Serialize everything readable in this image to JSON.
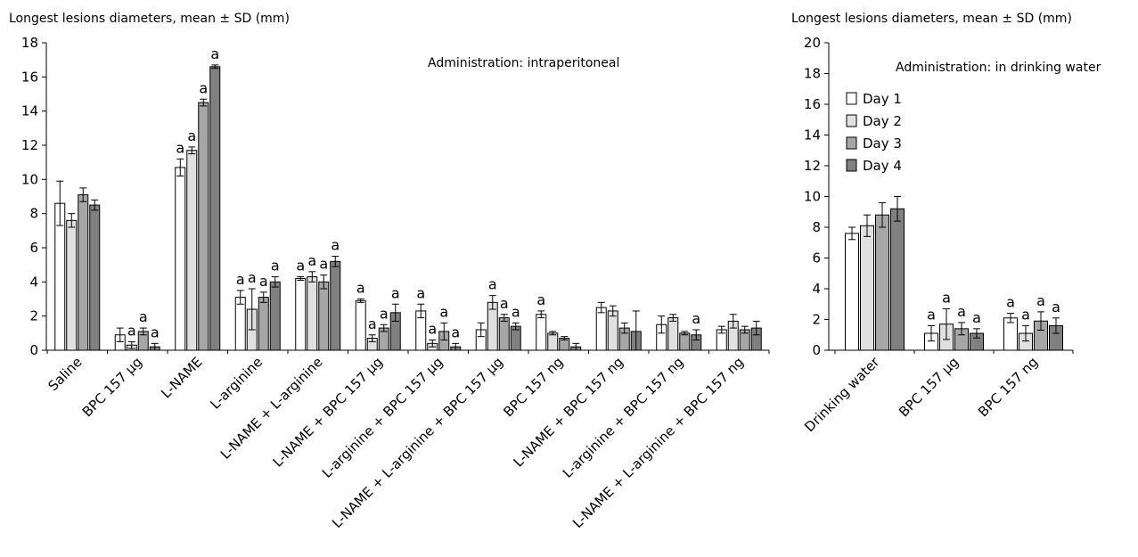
{
  "chart_data": [
    {
      "type": "bar",
      "title": "Longest lesions diameters, mean ± SD (mm)",
      "annotation": "Administration: intraperitoneal",
      "ylim": [
        0,
        18
      ],
      "yticks": [
        0,
        2,
        4,
        6,
        8,
        10,
        12,
        14,
        16,
        18
      ],
      "grid": false,
      "categories": [
        "Saline",
        "BPC 157 µg",
        "L-NAME",
        "L-arginine",
        "L-NAME + L-arginine",
        "L-NAME + BPC 157 µg",
        "L-arginine + BPC 157 µg",
        "L-NAME + L-arginine + BPC 157 µg",
        "BPC 157 ng",
        "L-NAME + BPC 157 ng",
        "L-arginine + BPC 157 ng",
        "L-NAME + L-arginine + BPC 157 ng"
      ],
      "series": [
        {
          "name": "Day 1",
          "color": "#ffffff",
          "values": [
            8.6,
            0.9,
            10.7,
            3.1,
            4.2,
            2.9,
            2.3,
            1.2,
            2.1,
            2.5,
            1.5,
            1.2
          ],
          "errors": [
            1.3,
            0.4,
            0.5,
            0.4,
            0.1,
            0.1,
            0.4,
            0.4,
            0.2,
            0.3,
            0.5,
            0.2
          ],
          "marks": [
            "",
            "",
            "a",
            "a",
            "a",
            "a",
            "a",
            "",
            "a",
            "",
            "",
            ""
          ]
        },
        {
          "name": "Day 2",
          "color": "#e0e0e0",
          "values": [
            7.6,
            0.3,
            11.7,
            2.4,
            4.3,
            0.7,
            0.4,
            2.8,
            1.0,
            2.3,
            1.9,
            1.7
          ],
          "errors": [
            0.4,
            0.2,
            0.2,
            1.2,
            0.3,
            0.2,
            0.2,
            0.4,
            0.1,
            0.3,
            0.2,
            0.4
          ],
          "marks": [
            "",
            "a",
            "a",
            "a",
            "a",
            "a",
            "a",
            "a",
            "",
            "",
            "",
            ""
          ]
        },
        {
          "name": "Day 3",
          "color": "#a6a6a6",
          "values": [
            9.1,
            1.1,
            14.5,
            3.1,
            4.0,
            1.3,
            1.1,
            1.9,
            0.7,
            1.3,
            1.0,
            1.2
          ],
          "errors": [
            0.4,
            0.2,
            0.2,
            0.3,
            0.4,
            0.2,
            0.5,
            0.2,
            0.1,
            0.3,
            0.1,
            0.2
          ],
          "marks": [
            "",
            "a",
            "a",
            "a",
            "a",
            "a",
            "a",
            "a",
            "",
            "",
            "",
            ""
          ]
        },
        {
          "name": "Day 4",
          "color": "#808080",
          "values": [
            8.5,
            0.2,
            16.6,
            4.0,
            5.2,
            2.2,
            0.2,
            1.4,
            0.2,
            1.1,
            0.9,
            1.3
          ],
          "errors": [
            0.3,
            0.2,
            0.1,
            0.3,
            0.3,
            0.5,
            0.2,
            0.2,
            0.2,
            1.2,
            0.3,
            0.4
          ],
          "marks": [
            "",
            "a",
            "a",
            "a",
            "a",
            "a",
            "a",
            "a",
            "",
            "",
            "a",
            ""
          ]
        }
      ]
    },
    {
      "type": "bar",
      "title": "Longest lesions diameters, mean ± SD (mm)",
      "annotation": "Administration: in drinking water",
      "ylim": [
        0,
        20
      ],
      "yticks": [
        0,
        2,
        4,
        6,
        8,
        10,
        12,
        14,
        16,
        18,
        20
      ],
      "grid": false,
      "legend": {
        "position": "top-left",
        "entries": [
          "Day 1",
          "Day 2",
          "Day 3",
          "Day 4"
        ]
      },
      "categories": [
        "Drinking water",
        "BPC 157 µg",
        "BPC 157 ng"
      ],
      "series": [
        {
          "name": "Day 1",
          "color": "#ffffff",
          "values": [
            7.6,
            1.1,
            2.1
          ],
          "errors": [
            0.4,
            0.5,
            0.3
          ],
          "marks": [
            "",
            "a",
            "a"
          ]
        },
        {
          "name": "Day 2",
          "color": "#e0e0e0",
          "values": [
            8.1,
            1.7,
            1.1
          ],
          "errors": [
            0.7,
            1.0,
            0.5
          ],
          "marks": [
            "",
            "a",
            "a"
          ]
        },
        {
          "name": "Day 3",
          "color": "#a6a6a6",
          "values": [
            8.8,
            1.4,
            1.9
          ],
          "errors": [
            0.8,
            0.4,
            0.6
          ],
          "marks": [
            "",
            "a",
            "a"
          ]
        },
        {
          "name": "Day 4",
          "color": "#808080",
          "values": [
            9.2,
            1.1,
            1.6
          ],
          "errors": [
            0.8,
            0.3,
            0.5
          ],
          "marks": [
            "",
            "a",
            "a"
          ]
        }
      ]
    }
  ]
}
